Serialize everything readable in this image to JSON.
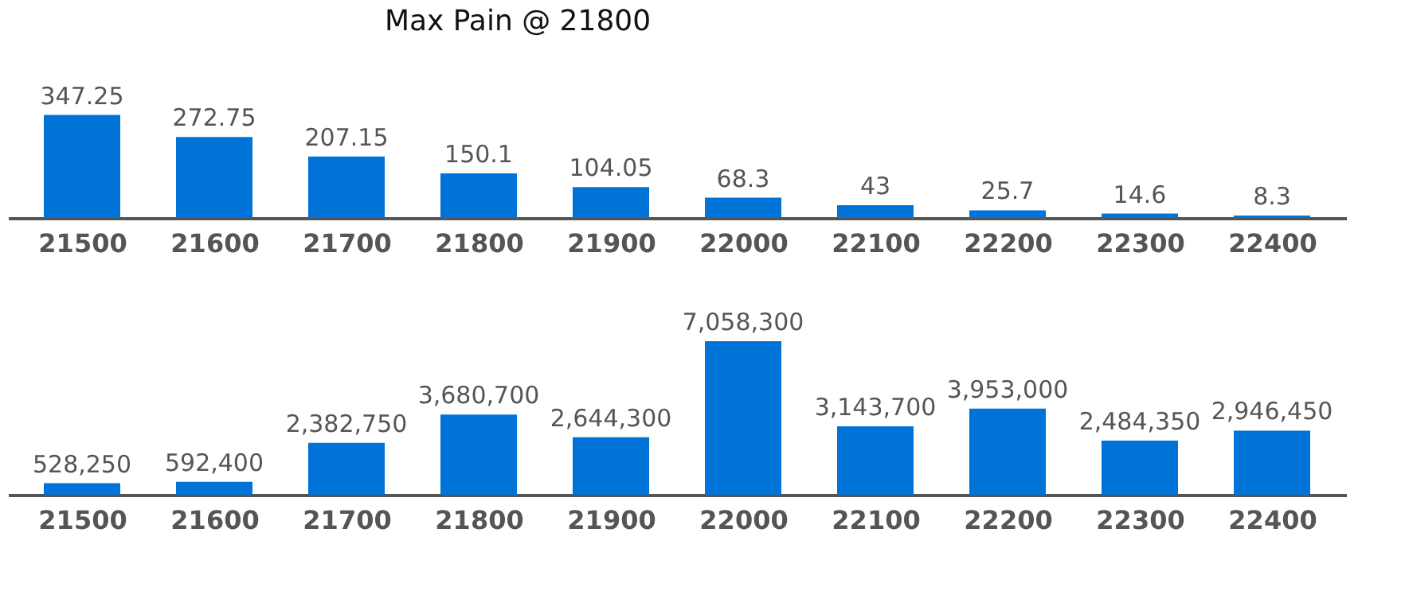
{
  "chart_data": [
    {
      "type": "bar",
      "title": "Max Pain @ 21800",
      "categories": [
        "21500",
        "21600",
        "21700",
        "21800",
        "21900",
        "22000",
        "22100",
        "22200",
        "22300",
        "22400"
      ],
      "values": [
        347.25,
        272.75,
        207.15,
        150.1,
        104.05,
        68.3,
        43,
        25.7,
        14.6,
        8.3
      ],
      "color": "#0073d9",
      "data_labels": true,
      "tick_labels": "x"
    },
    {
      "type": "bar",
      "categories": [
        "21500",
        "21600",
        "21700",
        "21800",
        "21900",
        "22000",
        "22100",
        "22200",
        "22300",
        "22400"
      ],
      "values": [
        528250,
        592400,
        2382750,
        3680700,
        2644300,
        7058300,
        3143700,
        3953000,
        2484350,
        2946450
      ],
      "color": "#0073d9",
      "value_labels": [
        "528,250",
        "592,400",
        "2,382,750",
        "3,680,700",
        "2,644,300",
        "7,058,300",
        "3,143,700",
        "3,953,000",
        "2,484,350",
        "2,946,450"
      ],
      "tick_labels": "x"
    }
  ]
}
